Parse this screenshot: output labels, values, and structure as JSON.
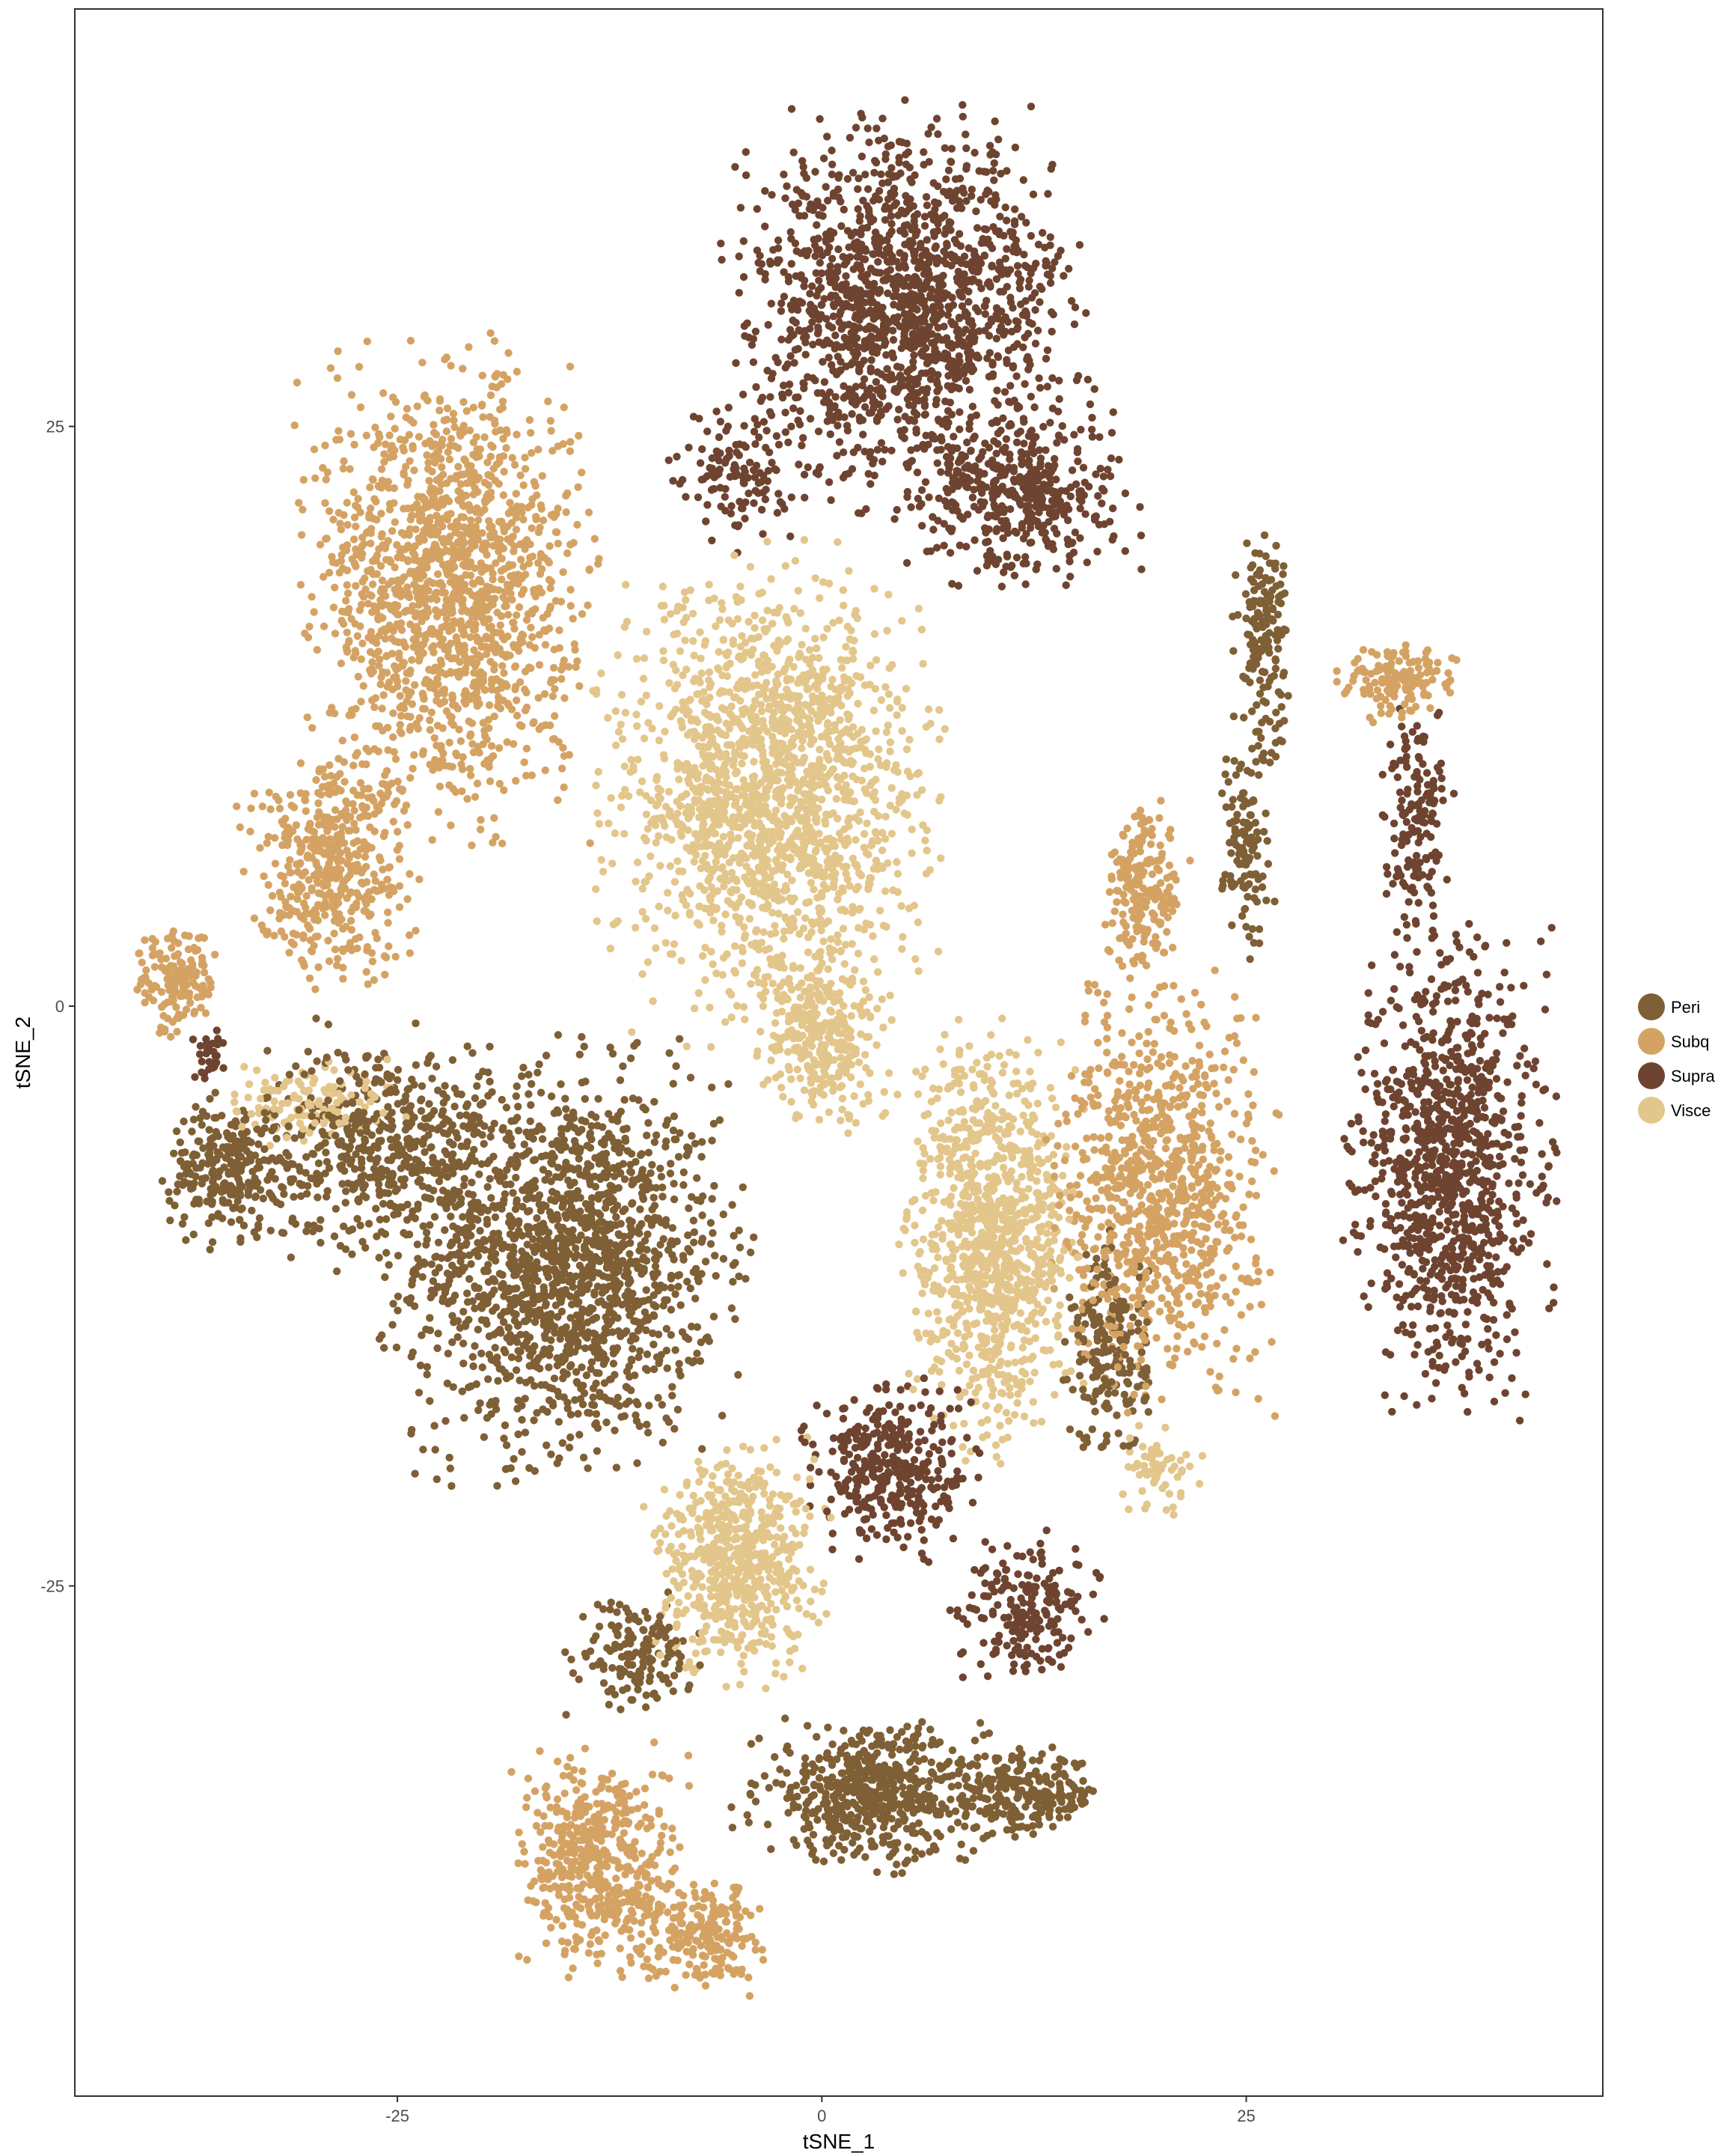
{
  "chart_data": {
    "type": "scatter",
    "title": "",
    "xlabel": "tSNE_1",
    "ylabel": "tSNE_2",
    "xlim": [
      -44,
      46
    ],
    "ylim": [
      -47,
      43
    ],
    "x_ticks": [
      -25,
      0,
      25
    ],
    "y_ticks": [
      25,
      0,
      -25
    ],
    "grid": false,
    "legend_position": "right",
    "series": [
      {
        "name": "Peri",
        "color": "#7F5F35",
        "clusters": [
          {
            "cx": -15,
            "cy": -11,
            "rx": 8,
            "ry": 7,
            "n": 1600
          },
          {
            "cx": -26,
            "cy": -6,
            "rx": 6,
            "ry": 4,
            "n": 500
          },
          {
            "cx": -35,
            "cy": -7,
            "rx": 3,
            "ry": 2.5,
            "n": 250
          },
          {
            "cx": 3,
            "cy": -34,
            "rx": 6,
            "ry": 2.5,
            "n": 550
          },
          {
            "cx": 12,
            "cy": -34,
            "rx": 4,
            "ry": 1.5,
            "n": 220
          },
          {
            "cx": -11,
            "cy": -28,
            "rx": 3,
            "ry": 2,
            "n": 150
          },
          {
            "cx": 26,
            "cy": 16,
            "rx": 1.3,
            "ry": 4,
            "n": 160
          },
          {
            "cx": 25,
            "cy": 7,
            "rx": 1.2,
            "ry": 4,
            "n": 120
          },
          {
            "cx": 17,
            "cy": -15,
            "rx": 2,
            "ry": 4,
            "n": 200
          }
        ]
      },
      {
        "name": "Subq",
        "color": "#D4A364",
        "clusters": [
          {
            "cx": -22,
            "cy": 18,
            "rx": 6.5,
            "ry": 8,
            "n": 1500
          },
          {
            "cx": -29,
            "cy": 6,
            "rx": 4,
            "ry": 4,
            "n": 450
          },
          {
            "cx": -38,
            "cy": 1,
            "rx": 2,
            "ry": 2,
            "n": 150
          },
          {
            "cx": -13,
            "cy": -37,
            "rx": 4,
            "ry": 4,
            "n": 500
          },
          {
            "cx": -7,
            "cy": -40,
            "rx": 3,
            "ry": 2,
            "n": 200
          },
          {
            "cx": 20,
            "cy": -8,
            "rx": 5,
            "ry": 7,
            "n": 900
          },
          {
            "cx": 19,
            "cy": 5,
            "rx": 2,
            "ry": 3,
            "n": 200
          },
          {
            "cx": 34,
            "cy": 14,
            "rx": 3,
            "ry": 1.3,
            "n": 140
          }
        ]
      },
      {
        "name": "Supra",
        "color": "#6E4430",
        "clusters": [
          {
            "cx": 5,
            "cy": 30,
            "rx": 8,
            "ry": 6.5,
            "n": 1500
          },
          {
            "cx": 12,
            "cy": 22,
            "rx": 5,
            "ry": 3,
            "n": 400
          },
          {
            "cx": -5,
            "cy": 23,
            "rx": 3,
            "ry": 2.5,
            "n": 120
          },
          {
            "cx": 37,
            "cy": -7,
            "rx": 4.5,
            "ry": 8,
            "n": 1000
          },
          {
            "cx": 35,
            "cy": 8,
            "rx": 1.6,
            "ry": 4,
            "n": 150
          },
          {
            "cx": 4,
            "cy": -20,
            "rx": 4,
            "ry": 3,
            "n": 350
          },
          {
            "cx": 12,
            "cy": -26,
            "rx": 3.5,
            "ry": 2.5,
            "n": 200
          },
          {
            "cx": -36,
            "cy": -2,
            "rx": 0.8,
            "ry": 1,
            "n": 30
          }
        ]
      },
      {
        "name": "Visce",
        "color": "#E3C68B",
        "clusters": [
          {
            "cx": -3,
            "cy": 9,
            "rx": 7.5,
            "ry": 8,
            "n": 1700
          },
          {
            "cx": 0,
            "cy": -1.5,
            "rx": 3,
            "ry": 3,
            "n": 300
          },
          {
            "cx": 10,
            "cy": -10,
            "rx": 4,
            "ry": 7,
            "n": 1000
          },
          {
            "cx": -5,
            "cy": -24,
            "rx": 4,
            "ry": 4,
            "n": 600
          },
          {
            "cx": -30,
            "cy": -4,
            "rx": 4,
            "ry": 1.5,
            "n": 120
          },
          {
            "cx": 20,
            "cy": -20,
            "rx": 2,
            "ry": 1.5,
            "n": 60
          }
        ]
      }
    ]
  }
}
